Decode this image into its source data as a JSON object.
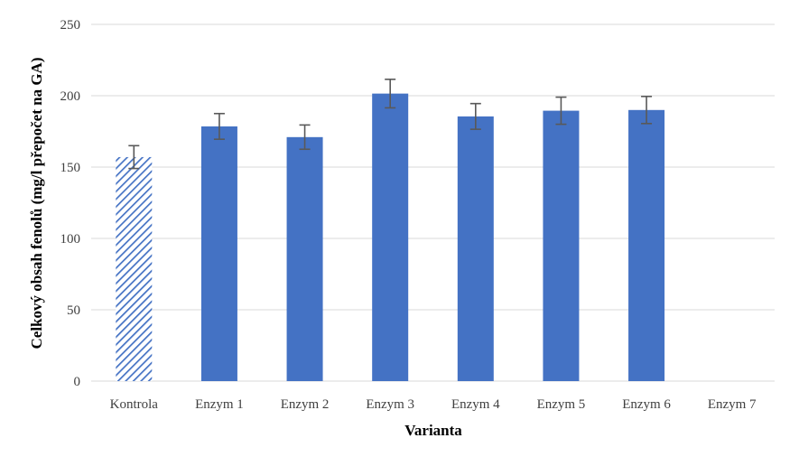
{
  "chart_data": {
    "type": "bar",
    "title": "",
    "xlabel": "Varianta",
    "ylabel": "Celkový obsah fenolů (mg/l přepočet na GA)",
    "categories": [
      "Kontrola",
      "Enzym 1",
      "Enzym 2",
      "Enzym 3",
      "Enzym 4",
      "Enzym 5",
      "Enzym 6",
      "Enzym 7"
    ],
    "values": [
      157,
      178.5,
      171,
      201.5,
      185.5,
      189.5,
      190,
      null
    ],
    "error": [
      8,
      9,
      8.5,
      10,
      9,
      9.5,
      9.5,
      null
    ],
    "patterned": [
      true,
      false,
      false,
      false,
      false,
      false,
      false,
      false
    ],
    "yticks": [
      0,
      50,
      100,
      150,
      200,
      250
    ],
    "ylim": [
      0,
      250
    ],
    "grid": true,
    "legend": "none",
    "colors": {
      "bar": "#4472C4",
      "hatch": "#4472C4",
      "grid": "#D9D9D9",
      "error": "#595959"
    }
  }
}
